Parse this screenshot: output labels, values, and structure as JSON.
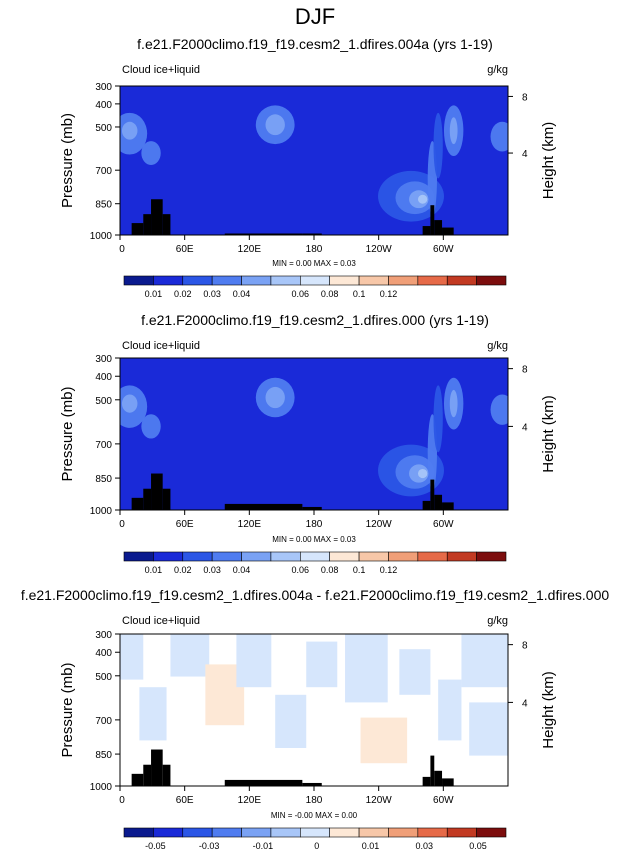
{
  "page_title": "DJF",
  "colors": {
    "plot_bg_abs": "#1a2ad8",
    "plot_bg_diff": "#ffffff",
    "terrain": "#000000",
    "scale": [
      "#0a1a8e",
      "#1a2ad8",
      "#2b56e6",
      "#4f7cf0",
      "#7aa2f4",
      "#a8c6f8",
      "#d6e6fc",
      "#fde8d6",
      "#f7c7a8",
      "#f09f78",
      "#e66a48",
      "#c23a22",
      "#7c0d0d"
    ]
  },
  "chart_data": [
    {
      "type": "heatmap",
      "title": "f.e21.F2000climo.f19_f19.cesm2_1.dfires.004a (yrs 1-19)",
      "variable": "Cloud ice+liquid",
      "units": "g/kg",
      "ylabel": "Pressure (mb)",
      "ylabel_right": "Height (km)",
      "y_ticks": [
        "300",
        "400",
        "500",
        "700",
        "850",
        "1000"
      ],
      "y_right_ticks": [
        "8",
        "4"
      ],
      "x_ticks": [
        "0",
        "60E",
        "120E",
        "180",
        "120W",
        "60W"
      ],
      "stats": "MIN =  0.00  MAX =  0.03",
      "colorbar_labels": [
        "0.01",
        "0.02",
        "0.03",
        "0.04",
        "0.06",
        "0.08",
        "0.1",
        "0.12"
      ]
    },
    {
      "type": "heatmap",
      "title": "f.e21.F2000climo.f19_f19.cesm2_1.dfires.000 (yrs 1-19)",
      "variable": "Cloud ice+liquid",
      "units": "g/kg",
      "ylabel": "Pressure (mb)",
      "ylabel_right": "Height (km)",
      "y_ticks": [
        "300",
        "400",
        "500",
        "700",
        "850",
        "1000"
      ],
      "y_right_ticks": [
        "8",
        "4"
      ],
      "x_ticks": [
        "0",
        "60E",
        "120E",
        "180",
        "120W",
        "60W"
      ],
      "stats": "MIN =  0.00  MAX =  0.03",
      "colorbar_labels": [
        "0.01",
        "0.02",
        "0.03",
        "0.04",
        "0.06",
        "0.08",
        "0.1",
        "0.12"
      ]
    },
    {
      "type": "heatmap",
      "title": "f.e21.F2000climo.f19_f19.cesm2_1.dfires.004a - f.e21.F2000climo.f19_f19.cesm2_1.dfires.000",
      "variable": "Cloud ice+liquid",
      "units": "g/kg",
      "ylabel": "Pressure (mb)",
      "ylabel_right": "Height (km)",
      "y_ticks": [
        "300",
        "400",
        "500",
        "700",
        "850",
        "1000"
      ],
      "y_right_ticks": [
        "8",
        "4"
      ],
      "x_ticks": [
        "0",
        "60E",
        "120E",
        "180",
        "120W",
        "60W"
      ],
      "stats": "MIN = -0.00  MAX =  0.00",
      "colorbar_labels": [
        "-0.05",
        "-0.03",
        "-0.01",
        "0",
        "0.01",
        "0.03",
        "0.05"
      ]
    }
  ]
}
